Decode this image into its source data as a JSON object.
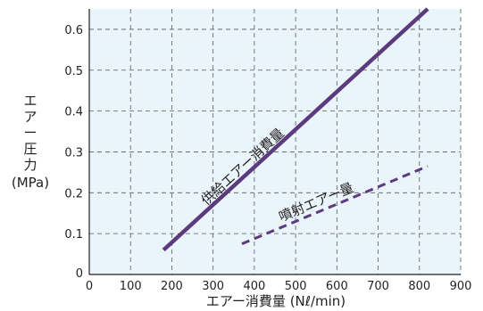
{
  "chart_data": {
    "type": "line",
    "x_axis": {
      "label": "エアー消費量 (Nℓ/min)",
      "range": [
        0,
        900
      ],
      "ticks": [
        "0",
        "100",
        "200",
        "300",
        "400",
        "500",
        "600",
        "700",
        "800",
        "900"
      ]
    },
    "y_axis": {
      "label": [
        "エ",
        "ア",
        "ー",
        "圧",
        "力",
        "(MPa)"
      ],
      "range": [
        0,
        0.65
      ],
      "ticks": [
        "0",
        "0.1",
        "0.2",
        "0.3",
        "0.4",
        "0.5",
        "0.6"
      ]
    },
    "grid": true,
    "plot_background": "#eaf4fb",
    "series": [
      {
        "name": "供給エアー消費量",
        "style": "solid",
        "color": "#5b3a7e",
        "points": [
          [
            180,
            0.06
          ],
          [
            820,
            0.65
          ]
        ]
      },
      {
        "name": "噴射エアー量",
        "style": "dashed",
        "color": "#5b3a7e",
        "points": [
          [
            370,
            0.075
          ],
          [
            820,
            0.265
          ]
        ]
      }
    ]
  }
}
